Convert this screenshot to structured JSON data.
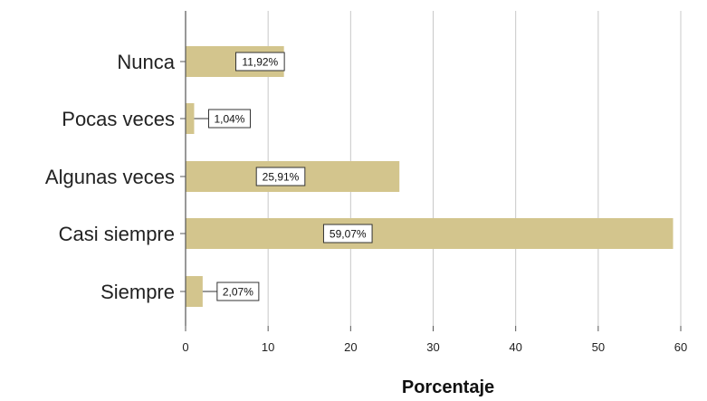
{
  "chart_data": {
    "type": "bar",
    "orientation": "horizontal",
    "categories": [
      "Nunca",
      "Pocas veces",
      "Algunas veces",
      "Casi siempre",
      "Siempre"
    ],
    "values": [
      11.92,
      1.04,
      25.91,
      59.07,
      2.07
    ],
    "data_labels": [
      "11,92%",
      "1,04%",
      "25,91%",
      "59,07%",
      "2,07%"
    ],
    "x_ticks": [
      "0",
      "10",
      "20",
      "30",
      "40",
      "50",
      "60"
    ],
    "xlim": [
      0,
      60
    ],
    "xlabel": "Porcentaje",
    "ylabel": "",
    "title": "",
    "grid": true,
    "colors": {
      "bar": "#d3c58d",
      "grid": "#c8c8c8",
      "axis": "#555555"
    }
  }
}
